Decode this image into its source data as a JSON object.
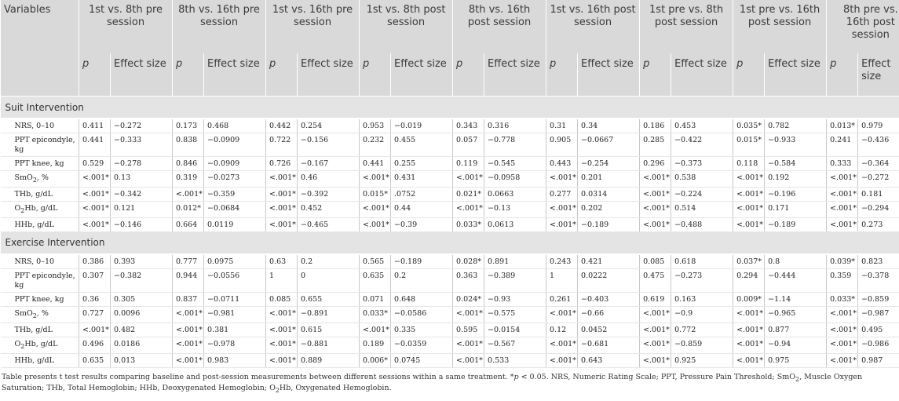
{
  "header": {
    "variables": "Variables",
    "groups": [
      "1st vs. 8th pre session",
      "8th vs. 16th pre session",
      "1st vs. 16th pre session",
      "1st vs. 8th post session",
      "8th vs. 16th post session",
      "1st vs. 16th post session",
      "1st pre vs. 8th post session",
      "1st pre vs. 16th post session",
      "8th pre vs. 16th post session"
    ],
    "p_label": "p",
    "effect_label": "Effect size"
  },
  "sections": [
    {
      "title": "Suit Intervention",
      "rows": [
        {
          "label": "NRS, 0–10",
          "values": [
            "0.411",
            "−0.272",
            "0.173",
            "0.468",
            "0.442",
            "0.254",
            "0.953",
            "−0.019",
            "0.343",
            "0.316",
            "0.31",
            "0.34",
            "0.186",
            "0.453",
            "0.035*",
            "0.782",
            "0.013*",
            "0.979"
          ]
        },
        {
          "label": "PPT epicondyle, kg",
          "values": [
            "0.441",
            "−0.333",
            "0.838",
            "−0.0909",
            "0.722",
            "−0.156",
            "0.232",
            "0.455",
            "0.057",
            "−0.778",
            "0.905",
            "−0.0667",
            "0.285",
            "−0.422",
            "0.015*",
            "−0.933",
            "0.241",
            "−0.436"
          ]
        },
        {
          "label": "PPT knee, kg",
          "values": [
            "0.529",
            "−0.278",
            "0.846",
            "−0.0909",
            "0.726",
            "−0.167",
            "0.441",
            "0.255",
            "0.119",
            "−0.545",
            "0.443",
            "−0.254",
            "0.296",
            "−0.373",
            "0.118",
            "−0.584",
            "0.333",
            "−0.364"
          ]
        },
        {
          "label": "SmO",
          "sub": "2",
          "rest": ", %",
          "values": [
            "<.001*",
            "0.13",
            "0.319",
            "−0.0273",
            "<.001*",
            "0.46",
            "<.001*",
            "0.431",
            "<.001*",
            "−0.0958",
            "<.001*",
            "0.201",
            "<.001*",
            "0.538",
            "<.001*",
            "0.192",
            "<.001*",
            "−0.272"
          ]
        },
        {
          "label": "THb, g/dL",
          "values": [
            "<.001*",
            "−0.342",
            "<.001*",
            "−0.359",
            "<.001*",
            "−0.392",
            "0.015*",
            ".0752",
            "0.021*",
            "0.0663",
            "0.277",
            "0.0314",
            "<.001*",
            "−0.224",
            "<.001*",
            "−0.196",
            "<.001*",
            "0.181"
          ]
        },
        {
          "label": "O",
          "sub": "2",
          "rest": "Hb, g/dL",
          "values": [
            "<.001*",
            "0.121",
            "0.012*",
            "−0.0684",
            "<.001*",
            "0.452",
            "<.001*",
            "0.44",
            "<.001*",
            "−0.13",
            "<.001*",
            "0.202",
            "<.001*",
            "0.514",
            "<.001*",
            "0.171",
            "<.001*",
            "−0.294"
          ]
        },
        {
          "label": "HHb, g/dL",
          "values": [
            "<.001*",
            "−0.146",
            "0.664",
            "0.0119",
            "<.001*",
            "−0.465",
            "<.001*",
            "−0.39",
            "0.033*",
            "0.0613",
            "<.001*",
            "−0.189",
            "<.001*",
            "−0.488",
            "<.001*",
            "−0.189",
            "<.001*",
            "0.273"
          ]
        }
      ]
    },
    {
      "title": "Exercise Intervention",
      "rows": [
        {
          "label": "NRS, 0–10",
          "values": [
            "0.386",
            "0.393",
            "0.777",
            "0.0975",
            "0.63",
            "0.2",
            "0.565",
            "−0.189",
            "0.028*",
            "0.891",
            "0.243",
            "0.421",
            "0.085",
            "0.618",
            "0.037*",
            "0.8",
            "0.039*",
            "0.823"
          ]
        },
        {
          "label": "PPT epicondyle, kg",
          "values": [
            "0.307",
            "−0.382",
            "0.944",
            "−0.0556",
            "1",
            "0",
            "0.635",
            "0.2",
            "0.363",
            "−0.389",
            "1",
            "0.0222",
            "0.475",
            "−0.273",
            "0.294",
            "−0.444",
            "0.359",
            "−0.378"
          ]
        },
        {
          "label": "PPT knee, kg",
          "values": [
            "0.36",
            "0.305",
            "0.837",
            "−0.0711",
            "0.085",
            "0.655",
            "0.071",
            "0.648",
            "0.024*",
            "−0.93",
            "0.261",
            "−0.403",
            "0.619",
            "0.163",
            "0.009*",
            "−1.14",
            "0.033*",
            "−0.859"
          ]
        },
        {
          "label": "SmO",
          "sub": "2",
          "rest": ", %",
          "values": [
            "0.727",
            "0.0096",
            "<.001*",
            "−0.981",
            "<.001*",
            "−0.891",
            "0.033*",
            "−0.0586",
            "<.001*",
            "−0.575",
            "<.001*",
            "−0.66",
            "<.001*",
            "−0.9",
            "<.001*",
            "−0.965",
            "<.001*",
            "−0.987"
          ]
        },
        {
          "label": "THb, g/dL",
          "values": [
            "<.001*",
            "0.482",
            "<.001*",
            "0.381",
            "<.001*",
            "0.615",
            "<.001*",
            "0.335",
            "0.595",
            "−0.0154",
            "0.12",
            "0.0452",
            "<.001*",
            "0.772",
            "<.001*",
            "0.877",
            "<.001*",
            "0.495"
          ]
        },
        {
          "label": "O",
          "sub": "2",
          "rest": "Hb, g/dL",
          "values": [
            "0.496",
            "0.0186",
            "<.001*",
            "−0.978",
            "<.001*",
            "−0.881",
            "0.189",
            "−0.0359",
            "<.001*",
            "−0.567",
            "<.001*",
            "−0.681",
            "<.001*",
            "−0.859",
            "<.001*",
            "−0.94",
            "<.001*",
            "−0.986"
          ]
        },
        {
          "label": "HHb, g/dL",
          "values": [
            "0.635",
            "0.013",
            "<.001*",
            "0.983",
            "<.001*",
            "0.889",
            "0.006*",
            "0.0745",
            "<.001*",
            "0.533",
            "<.001*",
            "0.643",
            "<.001*",
            "0.925",
            "<.001*",
            "0.975",
            "<.001*",
            "0.987"
          ]
        }
      ]
    }
  ],
  "footnote": {
    "part1": "Table presents t test results comparing baseline and post-session measurements between different sessions within a same treatment. *",
    "p": "p",
    "part2": " < 0.05. NRS, Numeric Rating Scale; PPT, Pressure Pain Threshold; SmO",
    "sub1": "2",
    "part3": ", Muscle Oxygen Saturation; THb, Total Hemoglobin; HHb, Deoxygenated Hemoglobin; O",
    "sub2": "2",
    "part4": "Hb, Oxygenated Hemoglobin."
  }
}
